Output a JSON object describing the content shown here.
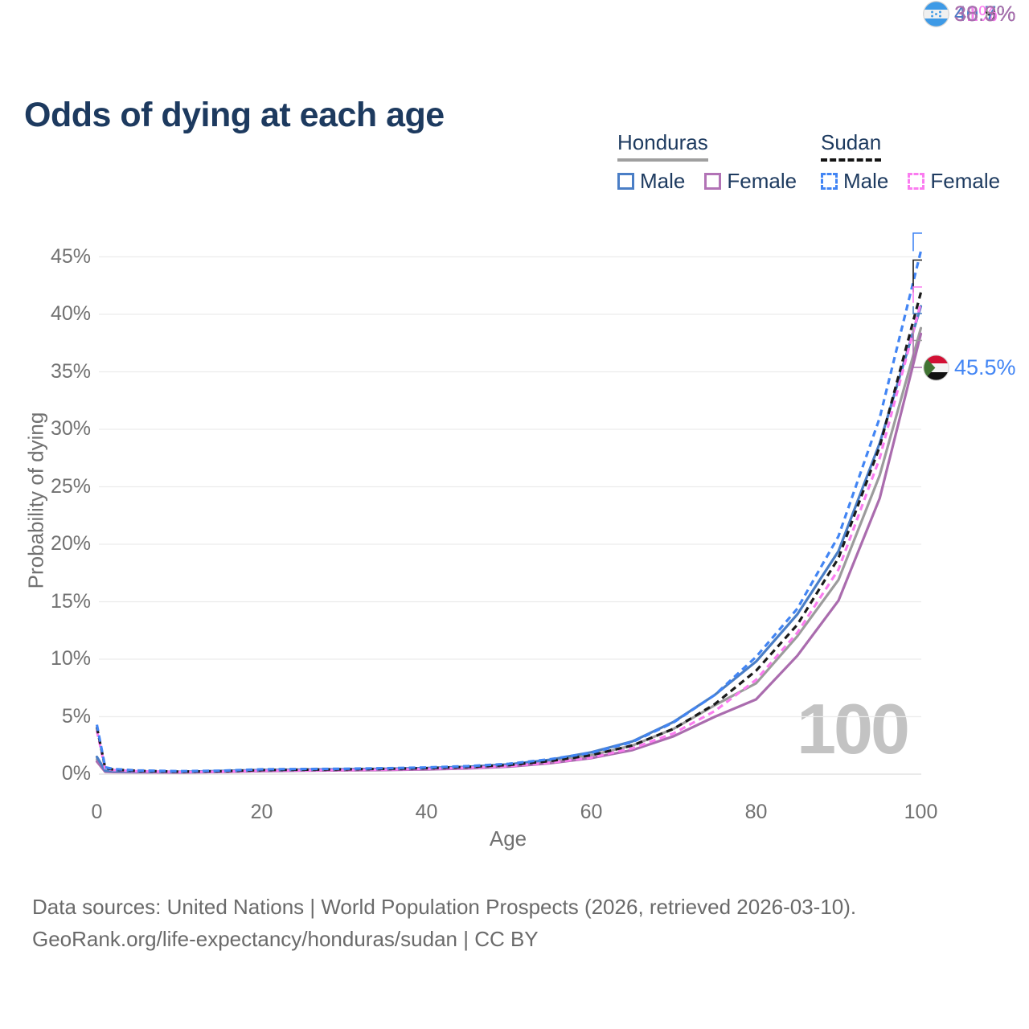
{
  "header": {
    "title": "Odds of dying at each age"
  },
  "legend": {
    "groups": [
      {
        "name": "Honduras",
        "line_style": "solid",
        "underline_color": "#9f9f9f",
        "items": [
          {
            "label": "Male",
            "color": "#4a7ec6"
          },
          {
            "label": "Female",
            "color": "#b273b6"
          }
        ]
      },
      {
        "name": "Sudan",
        "line_style": "dashed",
        "underline_color": "#141414",
        "items": [
          {
            "label": "Male",
            "color": "#4285f4"
          },
          {
            "label": "Female",
            "color": "#fb7cf0"
          }
        ]
      }
    ]
  },
  "chart_data": {
    "type": "line",
    "title": "Odds of dying at each age",
    "xlabel": "Age",
    "ylabel": "Probability of dying",
    "xlim": [
      0,
      100
    ],
    "ylim": [
      0,
      47
    ],
    "grid": "horizontal",
    "watermark": "100",
    "x_ticks": [
      {
        "v": 0,
        "label": "0"
      },
      {
        "v": 20,
        "label": "20"
      },
      {
        "v": 40,
        "label": "40"
      },
      {
        "v": 60,
        "label": "60"
      },
      {
        "v": 80,
        "label": "80"
      },
      {
        "v": 100,
        "label": "100"
      }
    ],
    "y_ticks": [
      {
        "v": 0,
        "label": "0%"
      },
      {
        "v": 5,
        "label": "5%"
      },
      {
        "v": 10,
        "label": "10%"
      },
      {
        "v": 15,
        "label": "15%"
      },
      {
        "v": 20,
        "label": "20%"
      },
      {
        "v": 25,
        "label": "25%"
      },
      {
        "v": 30,
        "label": "30%"
      },
      {
        "v": 35,
        "label": "35%"
      },
      {
        "v": 40,
        "label": "40%"
      },
      {
        "v": 45,
        "label": "45%"
      }
    ],
    "ages": [
      0,
      1,
      2,
      5,
      10,
      15,
      20,
      25,
      30,
      35,
      40,
      45,
      50,
      55,
      60,
      65,
      70,
      75,
      80,
      85,
      90,
      95,
      100
    ],
    "series": [
      {
        "key": "honduras_total",
        "name": "Honduras Total",
        "country": "honduras",
        "color": "#9c9c9c",
        "dash": false,
        "values": [
          1.3,
          0.26,
          0.22,
          0.19,
          0.18,
          0.23,
          0.31,
          0.35,
          0.38,
          0.42,
          0.47,
          0.57,
          0.75,
          1.1,
          1.65,
          2.5,
          3.95,
          6.0,
          7.9,
          12.0,
          16.9,
          26.0,
          38.8
        ]
      },
      {
        "key": "honduras_female",
        "name": "Honduras Female",
        "country": "honduras",
        "color": "#aa6cae",
        "dash": false,
        "values": [
          1.1,
          0.21,
          0.18,
          0.16,
          0.15,
          0.19,
          0.26,
          0.3,
          0.33,
          0.36,
          0.41,
          0.5,
          0.65,
          0.95,
          1.4,
          2.1,
          3.3,
          5.0,
          6.5,
          10.3,
          15.1,
          24.0,
          38.3
        ]
      },
      {
        "key": "honduras_male",
        "name": "Honduras Male",
        "country": "honduras",
        "color": "#4a7ec6",
        "dash": false,
        "values": [
          1.5,
          0.3,
          0.26,
          0.22,
          0.21,
          0.27,
          0.36,
          0.4,
          0.43,
          0.47,
          0.53,
          0.64,
          0.85,
          1.25,
          1.9,
          2.85,
          4.55,
          6.9,
          9.8,
          13.9,
          19.4,
          28.8,
          40.7
        ]
      },
      {
        "key": "sudan_female",
        "name": "Sudan Female",
        "country": "sudan",
        "color": "#fb7cf0",
        "dash": true,
        "values": [
          3.8,
          0.5,
          0.36,
          0.25,
          0.19,
          0.22,
          0.3,
          0.33,
          0.36,
          0.4,
          0.46,
          0.56,
          0.7,
          1.0,
          1.45,
          2.25,
          3.55,
          5.5,
          8.2,
          12.3,
          17.8,
          27.5,
          41.0
        ]
      },
      {
        "key": "sudan_total",
        "name": "Sudan Total",
        "country": "sudan",
        "color": "#1b1b1b",
        "dash": true,
        "values": [
          4.1,
          0.55,
          0.4,
          0.28,
          0.22,
          0.26,
          0.36,
          0.39,
          0.42,
          0.46,
          0.52,
          0.63,
          0.8,
          1.15,
          1.65,
          2.5,
          3.95,
          6.1,
          9.0,
          13.0,
          18.8,
          28.5,
          41.9
        ]
      },
      {
        "key": "sudan_male",
        "name": "Sudan Male",
        "country": "sudan",
        "color": "#4285f4",
        "dash": true,
        "values": [
          4.3,
          0.6,
          0.45,
          0.32,
          0.26,
          0.3,
          0.42,
          0.45,
          0.47,
          0.52,
          0.58,
          0.7,
          0.9,
          1.3,
          1.85,
          2.8,
          4.5,
          6.9,
          10.2,
          14.4,
          20.7,
          31.0,
          45.5
        ]
      }
    ],
    "end_labels": [
      {
        "series": "sudan_male",
        "label": "45.5%",
        "value": 45.5,
        "color": "#4285f4",
        "flag": "sudan"
      },
      {
        "series": "sudan_total",
        "label": "41.9%",
        "value": 41.9,
        "color": "#1b1b1b",
        "flag": "sudan"
      },
      {
        "series": "sudan_female",
        "label": "41%",
        "value": 41.0,
        "color": "#fb7cf0",
        "flag": "sudan"
      },
      {
        "series": "honduras_male",
        "label": "40.7%",
        "value": 40.7,
        "color": "#4a7ec6",
        "flag": "honduras"
      },
      {
        "series": "honduras_total",
        "label": "38.8%",
        "value": 38.8,
        "color": "#9c9c9c",
        "flag": "honduras"
      },
      {
        "series": "honduras_female",
        "label": "38.3%",
        "value": 38.3,
        "color": "#aa6cae",
        "flag": "honduras"
      }
    ]
  },
  "footer": {
    "line1": "Data sources: United Nations | World Population Prospects (2026, retrieved 2026-03-10).",
    "line2": "GeoRank.org/life-expectancy/honduras/sudan | CC BY"
  },
  "colors": {
    "title_text": "#1d3a5f",
    "axis_text": "#717171",
    "gridline": "#ececec",
    "zero_line": "#dedede",
    "watermark": "#c3c3c3",
    "footer_text": "#6a6a6a"
  }
}
